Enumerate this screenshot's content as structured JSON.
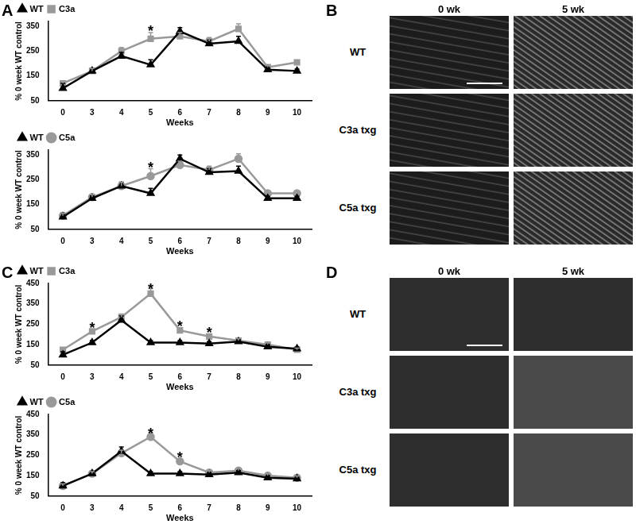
{
  "chart_data": [
    {
      "type": "line",
      "panel": "A",
      "x_label": "Weeks",
      "y_label": "% 0 week WT control",
      "categories": [
        "0",
        "3",
        "4",
        "5",
        "6",
        "7",
        "8",
        "9",
        "10"
      ],
      "ylim": [
        50,
        370
      ],
      "yticks": [
        50,
        150,
        250,
        350
      ],
      "grid": false,
      "legend": "upper left",
      "series": [
        {
          "name": "WT",
          "color": "#000000",
          "marker": "triangle",
          "values": [
            100,
            170,
            230,
            195,
            330,
            280,
            290,
            175,
            170
          ],
          "errors": [
            20,
            10,
            15,
            20,
            15,
            15,
            20,
            8,
            8
          ]
        },
        {
          "name": "C3a",
          "color": "#999999",
          "marker": "square",
          "values": [
            120,
            170,
            250,
            300,
            310,
            290,
            340,
            185,
            205
          ],
          "errors": [
            10,
            10,
            15,
            25,
            15,
            15,
            20,
            8,
            8
          ]
        }
      ],
      "annotations": [
        {
          "category": "5",
          "y": 340,
          "text": "*"
        }
      ]
    },
    {
      "type": "line",
      "x_label": "Weeks",
      "y_label": "% 0 week WT control",
      "categories": [
        "0",
        "3",
        "4",
        "5",
        "6",
        "7",
        "8",
        "9",
        "10"
      ],
      "ylim": [
        50,
        370
      ],
      "yticks": [
        50,
        150,
        250,
        350
      ],
      "grid": false,
      "legend": "upper left",
      "series": [
        {
          "name": "WT",
          "color": "#000000",
          "marker": "triangle",
          "values": [
            100,
            175,
            225,
            195,
            335,
            280,
            285,
            175,
            175
          ],
          "errors": [
            15,
            10,
            15,
            20,
            15,
            15,
            20,
            8,
            8
          ]
        },
        {
          "name": "C5a",
          "color": "#999999",
          "marker": "circle",
          "values": [
            105,
            180,
            225,
            265,
            310,
            290,
            335,
            195,
            195
          ],
          "errors": [
            10,
            10,
            15,
            30,
            15,
            15,
            20,
            8,
            8
          ]
        }
      ],
      "annotations": [
        {
          "category": "5",
          "y": 310,
          "text": "*"
        }
      ]
    },
    {
      "type": "line",
      "panel": "C",
      "x_label": "Weeks",
      "y_label": "% 0 week WT control",
      "categories": [
        "0",
        "3",
        "4",
        "5",
        "6",
        "7",
        "8",
        "9",
        "10"
      ],
      "ylim": [
        50,
        450
      ],
      "yticks": [
        50,
        150,
        250,
        350,
        450
      ],
      "grid": false,
      "legend": "upper left",
      "series": [
        {
          "name": "WT",
          "color": "#000000",
          "marker": "triangle",
          "values": [
            100,
            160,
            270,
            160,
            160,
            155,
            165,
            140,
            130
          ],
          "errors": [
            15,
            10,
            20,
            10,
            10,
            10,
            10,
            10,
            8
          ]
        },
        {
          "name": "C3a",
          "color": "#999999",
          "marker": "square",
          "values": [
            125,
            215,
            285,
            400,
            220,
            190,
            170,
            150,
            125
          ],
          "errors": [
            10,
            10,
            15,
            25,
            10,
            10,
            10,
            10,
            8
          ]
        }
      ],
      "annotations": [
        {
          "category": "3",
          "y": 245,
          "text": "*"
        },
        {
          "category": "5",
          "y": 435,
          "text": "*"
        },
        {
          "category": "6",
          "y": 250,
          "text": "*"
        },
        {
          "category": "7",
          "y": 220,
          "text": "*"
        }
      ]
    },
    {
      "type": "line",
      "x_label": "Weeks",
      "y_label": "% 0 week WT control",
      "categories": [
        "0",
        "3",
        "4",
        "5",
        "6",
        "7",
        "8",
        "9",
        "10"
      ],
      "ylim": [
        50,
        450
      ],
      "yticks": [
        50,
        150,
        250,
        350,
        450
      ],
      "grid": false,
      "legend": "upper left",
      "series": [
        {
          "name": "WT",
          "color": "#000000",
          "marker": "triangle",
          "values": [
            100,
            160,
            270,
            160,
            160,
            155,
            165,
            140,
            135
          ],
          "errors": [
            15,
            10,
            20,
            10,
            10,
            10,
            10,
            10,
            8
          ]
        },
        {
          "name": "C5a",
          "color": "#999999",
          "marker": "circle",
          "values": [
            100,
            160,
            260,
            340,
            220,
            165,
            175,
            150,
            140
          ],
          "errors": [
            10,
            10,
            15,
            20,
            10,
            10,
            10,
            10,
            8
          ]
        }
      ],
      "annotations": [
        {
          "category": "5",
          "y": 370,
          "text": "*"
        },
        {
          "category": "6",
          "y": 250,
          "text": "*"
        }
      ]
    }
  ],
  "image_panels": [
    {
      "panel": "B",
      "columns": [
        "0 wk",
        "5 wk"
      ],
      "rows": [
        "WT",
        "C3a txg",
        "C5a txg"
      ]
    },
    {
      "panel": "D",
      "columns": [
        "0 wk",
        "5 wk"
      ],
      "rows": [
        "WT",
        "C3a txg",
        "C5a txg"
      ]
    }
  ]
}
